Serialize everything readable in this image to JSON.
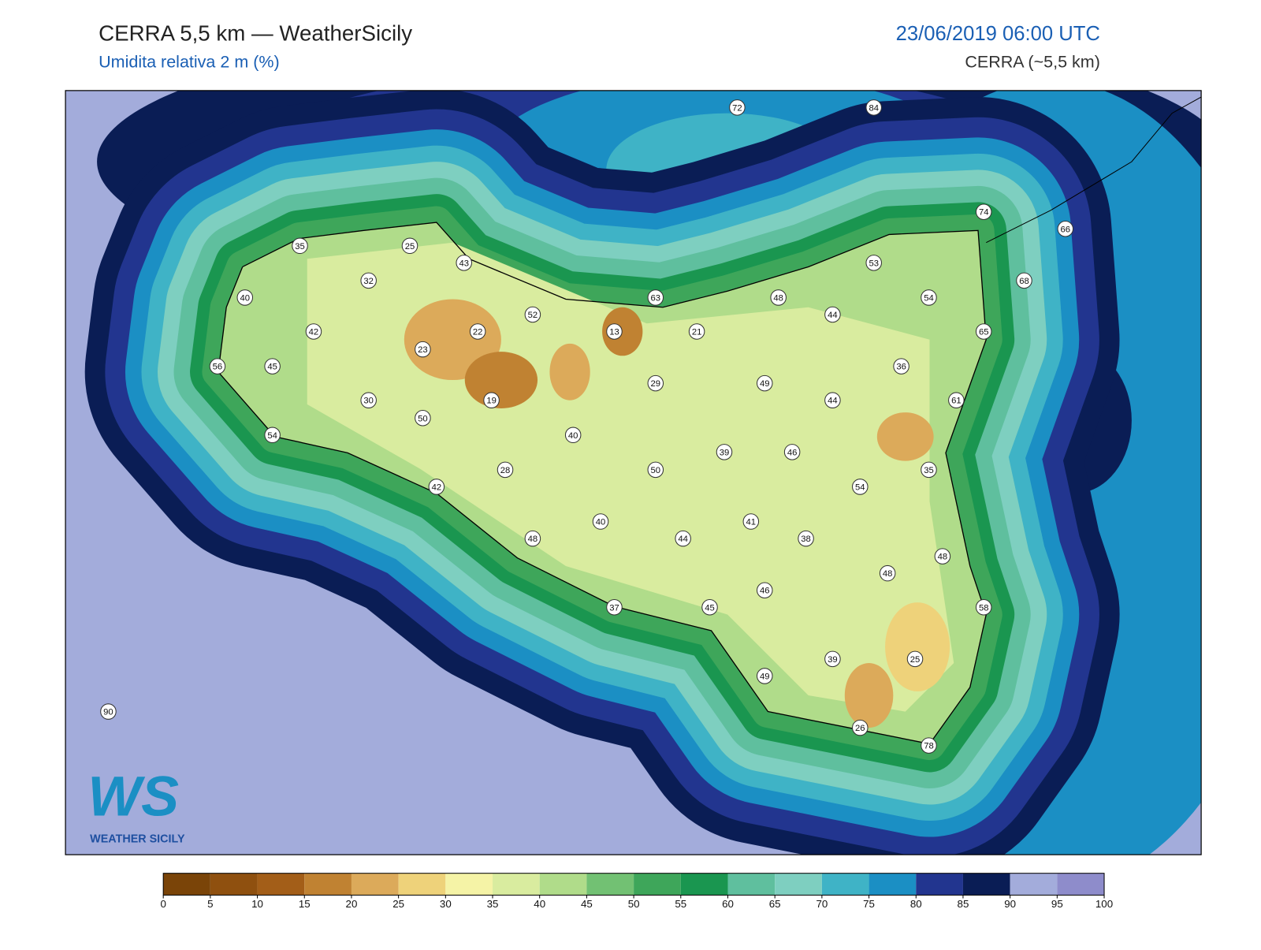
{
  "header": {
    "title": "CERRA 5,5 km — WeatherSicily",
    "subtitle": "Umidita relativa 2 m (%)",
    "date": "23/06/2019 06:00 UTC",
    "source": "CERRA (~5,5 km)"
  },
  "stations": [
    72,
    84,
    74,
    66,
    35,
    25,
    43,
    53,
    32,
    68,
    40,
    63,
    48,
    54,
    52,
    44,
    42,
    22,
    13,
    21,
    65,
    23,
    56,
    45,
    36,
    29,
    49,
    30,
    19,
    44,
    61,
    50,
    54,
    40,
    28,
    50,
    39,
    46,
    35,
    42,
    54,
    40,
    41,
    48,
    44,
    38,
    48,
    48,
    46,
    37,
    45,
    58,
    39,
    25,
    49,
    90,
    26,
    78
  ],
  "colorbar": {
    "ticks": [
      0,
      5,
      10,
      15,
      20,
      25,
      30,
      35,
      40,
      45,
      50,
      55,
      60,
      65,
      70,
      75,
      80,
      85,
      90,
      95,
      100
    ],
    "colors": [
      "#7a4408",
      "#8f500f",
      "#a35e18",
      "#c08232",
      "#dcaa5a",
      "#eed27a",
      "#f5f3a6",
      "#d9ec9f",
      "#b0dc8a",
      "#72c173",
      "#3ea65a",
      "#1a9650",
      "#5fbf9e",
      "#7ecfc0",
      "#3fb3c6",
      "#1b8fc4",
      "#22358f",
      "#0a1d55",
      "#a3acdb",
      "#8e8ccb"
    ]
  },
  "logo": {
    "mark": "WS",
    "text": "WEATHER SICILY"
  }
}
